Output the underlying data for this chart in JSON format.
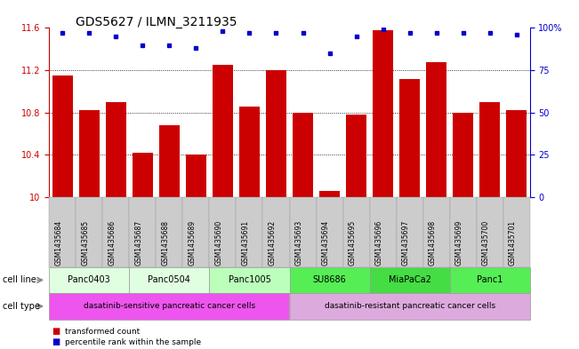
{
  "title": "GDS5627 / ILMN_3211935",
  "samples": [
    "GSM1435684",
    "GSM1435685",
    "GSM1435686",
    "GSM1435687",
    "GSM1435688",
    "GSM1435689",
    "GSM1435690",
    "GSM1435691",
    "GSM1435692",
    "GSM1435693",
    "GSM1435694",
    "GSM1435695",
    "GSM1435696",
    "GSM1435697",
    "GSM1435698",
    "GSM1435699",
    "GSM1435700",
    "GSM1435701"
  ],
  "transformed_count": [
    11.15,
    10.82,
    10.9,
    10.42,
    10.68,
    10.4,
    11.25,
    10.86,
    11.2,
    10.8,
    10.06,
    10.78,
    11.58,
    11.12,
    11.28,
    10.8,
    10.9,
    10.82
  ],
  "percentile": [
    97,
    97,
    95,
    90,
    90,
    88,
    98,
    97,
    97,
    97,
    85,
    95,
    99,
    97,
    97,
    97,
    97,
    96
  ],
  "ylim": [
    10.0,
    11.6
  ],
  "yticks": [
    10.0,
    10.4,
    10.8,
    11.2,
    11.6
  ],
  "ytick_labels": [
    "10",
    "10.4",
    "10.8",
    "11.2",
    "11.6"
  ],
  "percentile_ylim": [
    0,
    100
  ],
  "percentile_yticks": [
    0,
    25,
    50,
    75,
    100
  ],
  "percentile_ytick_labels": [
    "0",
    "25",
    "50",
    "75",
    "100%"
  ],
  "bar_color": "#cc0000",
  "dot_color": "#0000cc",
  "cell_lines": [
    {
      "name": "Panc0403",
      "start": 0,
      "end": 2,
      "color": "#e0ffe0"
    },
    {
      "name": "Panc0504",
      "start": 3,
      "end": 5,
      "color": "#e0ffe0"
    },
    {
      "name": "Panc1005",
      "start": 6,
      "end": 8,
      "color": "#bbffbb"
    },
    {
      "name": "SU8686",
      "start": 9,
      "end": 11,
      "color": "#55ee55"
    },
    {
      "name": "MiaPaCa2",
      "start": 12,
      "end": 14,
      "color": "#44dd44"
    },
    {
      "name": "Panc1",
      "start": 15,
      "end": 17,
      "color": "#55ee55"
    }
  ],
  "cell_types": [
    {
      "name": "dasatinib-sensitive pancreatic cancer cells",
      "start": 0,
      "end": 8,
      "color": "#ee55ee"
    },
    {
      "name": "dasatinib-resistant pancreatic cancer cells",
      "start": 9,
      "end": 17,
      "color": "#ddaadd"
    }
  ],
  "legend_items": [
    {
      "label": "transformed count",
      "color": "#cc0000"
    },
    {
      "label": "percentile rank within the sample",
      "color": "#0000cc"
    }
  ],
  "bg_color": "#ffffff",
  "title_fontsize": 10,
  "tick_fontsize": 7,
  "bar_label_fontsize": 6,
  "annotation_fontsize": 7,
  "cell_line_label_color": "#888888",
  "xtick_bg_color": "#cccccc"
}
